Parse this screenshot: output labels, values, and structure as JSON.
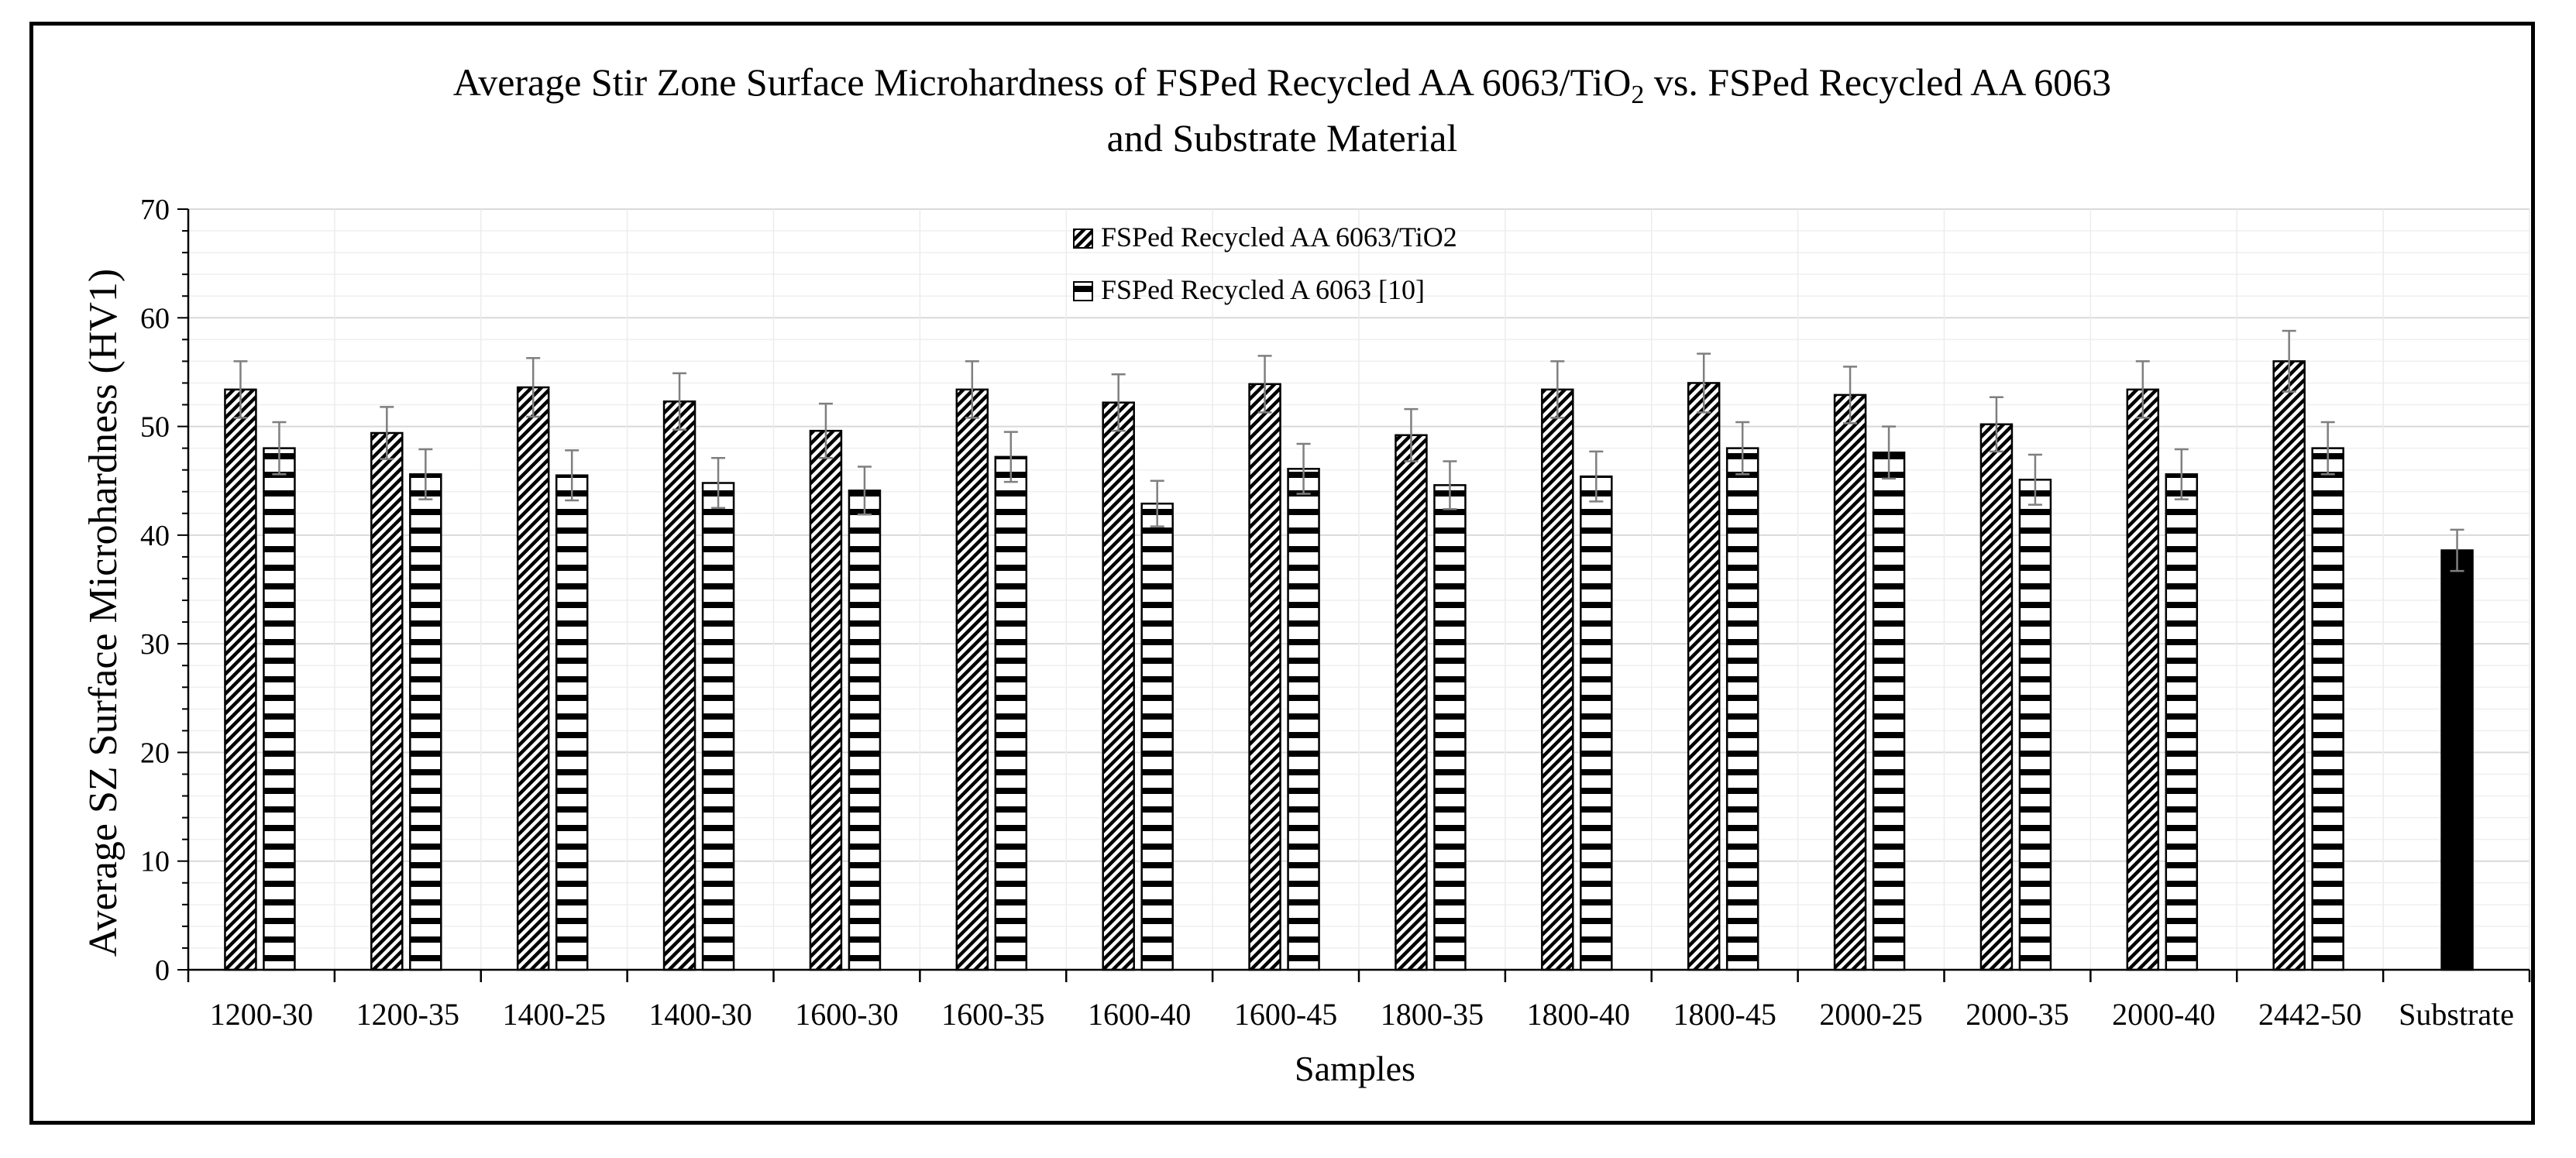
{
  "chart_data": {
    "type": "bar",
    "title_line1_pre": "Average Stir Zone Surface Microhardness of FSPed Recycled AA 6063/TiO",
    "title_line1_sub": "2",
    "title_line1_post": " vs. FSPed Recycled AA 6063",
    "title_line2": "and Substrate Material",
    "xlabel": "Samples",
    "ylabel": "Average SZ Surface Microhardness (HV1)",
    "ylim": [
      0,
      70
    ],
    "yticks": [
      0,
      10,
      20,
      30,
      40,
      50,
      60,
      70
    ],
    "grid": true,
    "legend_position": "top-center",
    "categories": [
      "1200-30",
      "1200-35",
      "1400-25",
      "1400-30",
      "1600-30",
      "1600-35",
      "1600-40",
      "1600-45",
      "1800-35",
      "1800-40",
      "1800-45",
      "2000-25",
      "2000-35",
      "2000-40",
      "2442-50",
      "Substrate"
    ],
    "series": [
      {
        "name": "FSPed Recycled AA 6063/TiO2",
        "pattern": "diagonal-hatch",
        "values": [
          53.4,
          49.4,
          53.6,
          52.3,
          49.6,
          53.4,
          52.2,
          53.9,
          49.2,
          53.4,
          54.0,
          52.9,
          50.2,
          53.4,
          56.0,
          null
        ],
        "errors": [
          2.6,
          2.4,
          2.7,
          2.6,
          2.5,
          2.6,
          2.6,
          2.6,
          2.4,
          2.6,
          2.7,
          2.6,
          2.5,
          2.6,
          2.8,
          null
        ]
      },
      {
        "name": "FSPed Recycled A 6063 [10]",
        "pattern": "horizontal-stripes",
        "values": [
          48.0,
          45.6,
          45.5,
          44.8,
          44.1,
          47.2,
          42.9,
          46.1,
          44.6,
          45.4,
          48.0,
          47.6,
          45.1,
          45.6,
          48.0,
          null
        ],
        "errors": [
          2.4,
          2.3,
          2.3,
          2.3,
          2.2,
          2.3,
          2.1,
          2.3,
          2.2,
          2.3,
          2.4,
          2.4,
          2.3,
          2.3,
          2.4,
          null
        ]
      },
      {
        "name": "Substrate",
        "pattern": "solid-black",
        "values": [
          null,
          null,
          null,
          null,
          null,
          null,
          null,
          null,
          null,
          null,
          null,
          null,
          null,
          null,
          null,
          38.6
        ],
        "errors": [
          null,
          null,
          null,
          null,
          null,
          null,
          null,
          null,
          null,
          null,
          null,
          null,
          null,
          null,
          null,
          1.9
        ]
      }
    ]
  }
}
